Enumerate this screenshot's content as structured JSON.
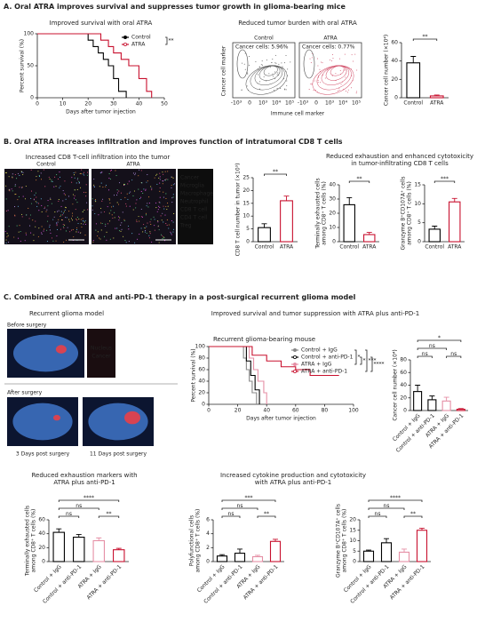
{
  "sections": [
    {
      "title": "A. Oral ATRA improves survival and suppresses tumor growth in glioma-bearing mice"
    },
    {
      "title": "B. Oral ATRA increases infiltration and improves function of intratumoral CD8 T cells"
    },
    {
      "title": "C. Combined oral ATRA and anti-PD-1 therapy in a post-surgical recurrent glioma model"
    }
  ],
  "flow": {
    "title": "Reduced tumor burden with oral ATRA",
    "y_label": "Cancer cell marker",
    "x_label": "Immune cell marker",
    "panels": [
      {
        "name": "Control",
        "gate": "Cancer cells: 5.96%"
      },
      {
        "name": "ATRA",
        "gate": "Cancer cells: 0.77%"
      }
    ],
    "ticks": [
      "-10³",
      "0",
      "10³",
      "10⁴",
      "10⁵"
    ]
  },
  "imaging": {
    "title": "Increased CD8 T-cell infiltration into the tumor",
    "panels": [
      "Control",
      "ATRA"
    ],
    "legend": [
      {
        "name": "Cancer",
        "color": "#ff5a8a"
      },
      {
        "name": "Microglia",
        "color": "#6fd0ff"
      },
      {
        "name": "Macrophage",
        "color": "#5fe08a"
      },
      {
        "name": "Neutrophil",
        "color": "#c9a3ff"
      },
      {
        "name": "CD8 T cell",
        "color": "#ffff60"
      },
      {
        "name": "CD4 T cell",
        "color": "#ff9a40"
      },
      {
        "name": "Treg",
        "color": "#ff60ff"
      }
    ]
  },
  "recurrent": {
    "title": "Recurrent glioma model",
    "before": "Before surgery",
    "after": "After surgery",
    "channels": [
      {
        "name": "Nucleus",
        "color": "#8fb8ff"
      },
      {
        "name": "Cancer",
        "color": "#ff3b3b"
      }
    ],
    "days": [
      "3 Days post surgery",
      "11 Days post surgery"
    ]
  },
  "headers": {
    "b_function": [
      "Reduced exhaustion and enhanced cytotoxicity",
      "in tumor-infiltrating CD8 T cells"
    ],
    "c_survival": [
      "Improved survival and tumor suppression with ATRA plus anti-PD-1"
    ],
    "c_exhaustion": [
      "Reduced exhaustion markers with",
      "ATRA plus anti-PD-1"
    ],
    "c_cytokine": [
      "Increased cytokine production and cytotoxicity",
      "with ATRA plus anti-PD-1"
    ]
  },
  "chart_data": [
    {
      "type": "survival",
      "title": "Improved survival with oral ATRA",
      "x_label": "Days after tumor injection",
      "y_label": [
        "Percent survival (%)"
      ],
      "xlim": [
        0,
        50
      ],
      "xticks": [
        0,
        10,
        20,
        30,
        40,
        50
      ],
      "ylim": [
        0,
        100
      ],
      "yticks": [
        0,
        50,
        100
      ],
      "legend": "upper right",
      "significance": [
        "**"
      ],
      "series": [
        {
          "name": "Control",
          "color": "#000000",
          "x": [
            0,
            20,
            22,
            24,
            26,
            28,
            30,
            32,
            35
          ],
          "values": [
            100,
            90,
            80,
            70,
            60,
            50,
            30,
            10,
            0
          ]
        },
        {
          "name": "ATRA",
          "color": "#c8102e",
          "x": [
            0,
            25,
            28,
            30,
            33,
            36,
            40,
            43,
            45
          ],
          "values": [
            100,
            90,
            80,
            70,
            60,
            50,
            30,
            10,
            0
          ]
        }
      ]
    },
    {
      "type": "bar",
      "y_label": [
        "Cancer cell number (×10⁴)"
      ],
      "categories": [
        "Control",
        "ATRA"
      ],
      "values": [
        38,
        2
      ],
      "errors": [
        7,
        1
      ],
      "colors": [
        "#000000",
        "#c8102e"
      ],
      "ylim": [
        0,
        60
      ],
      "yticks": [
        0,
        20,
        40,
        60
      ],
      "significance": [
        "**"
      ]
    },
    {
      "type": "bar",
      "y_label": [
        "CD8 T cell number in tumor (×10³)"
      ],
      "categories": [
        "Control",
        "ATRA"
      ],
      "values": [
        5.5,
        16
      ],
      "errors": [
        1.5,
        1.8
      ],
      "colors": [
        "#000000",
        "#c8102e"
      ],
      "ylim": [
        0,
        25
      ],
      "yticks": [
        0,
        5,
        10,
        15,
        20,
        25
      ],
      "significance": [
        "**"
      ]
    },
    {
      "type": "bar",
      "y_label": [
        "Terminally exhausted cells",
        "among CD8⁺ T cells (%)"
      ],
      "categories": [
        "Control",
        "ATRA"
      ],
      "values": [
        26,
        5
      ],
      "errors": [
        5,
        1.5
      ],
      "colors": [
        "#000000",
        "#c8102e"
      ],
      "ylim": [
        0,
        40
      ],
      "yticks": [
        0,
        10,
        20,
        30,
        40
      ],
      "significance": [
        "**"
      ]
    },
    {
      "type": "bar",
      "y_label": [
        "Granzyme B⁺CD107A⁺ cells",
        "among CD8⁺ T cells (%)"
      ],
      "categories": [
        "Control",
        "ATRA"
      ],
      "values": [
        3.3,
        10.5
      ],
      "errors": [
        0.8,
        0.9
      ],
      "colors": [
        "#000000",
        "#c8102e"
      ],
      "ylim": [
        0,
        15
      ],
      "yticks": [
        0,
        5,
        10,
        15
      ],
      "significance": [
        "***"
      ]
    },
    {
      "type": "survival",
      "title": "Recurrent glioma-bearing mouse",
      "x_label": "Days after tumor injection",
      "y_label": [
        "Percent survival (%)"
      ],
      "xlim": [
        0,
        100
      ],
      "xticks": [
        0,
        20,
        40,
        60,
        80,
        100
      ],
      "ylim": [
        0,
        100
      ],
      "yticks": [
        0,
        20,
        40,
        60,
        80,
        100
      ],
      "legend": "upper right",
      "significance": [
        "*",
        "*",
        "***",
        "****"
      ],
      "series": [
        {
          "name": "Control + IgG",
          "color": "#888888",
          "x": [
            0,
            24,
            26,
            28,
            30,
            33
          ],
          "values": [
            100,
            80,
            60,
            40,
            20,
            0
          ]
        },
        {
          "name": "Control + anti-PD-1",
          "color": "#000000",
          "x": [
            0,
            26,
            29,
            32,
            35
          ],
          "values": [
            100,
            75,
            50,
            25,
            0
          ]
        },
        {
          "name": "ATRA + IgG",
          "color": "#e58fa5",
          "x": [
            0,
            28,
            31,
            34,
            38,
            40
          ],
          "values": [
            100,
            80,
            60,
            40,
            20,
            0
          ]
        },
        {
          "name": "ATRA + anti-PD-1",
          "color": "#c8102e",
          "x": [
            0,
            30,
            40,
            50,
            60,
            70,
            90
          ],
          "values": [
            100,
            85,
            75,
            65,
            60,
            50,
            50
          ]
        }
      ]
    },
    {
      "type": "bar",
      "y_label": [
        "Cancer cell number (×10⁴)"
      ],
      "categories": [
        "Control + IgG",
        "Control + anti-PD-1",
        "ATRA + IgG",
        "ATRA + anti-PD-1"
      ],
      "values": [
        30,
        17,
        15,
        2
      ],
      "errors": [
        10,
        6,
        6,
        1
      ],
      "colors": [
        "#000000",
        "#000000",
        "#e58fa5",
        "#c8102e"
      ],
      "ylim": [
        0,
        80
      ],
      "yticks": [
        0,
        20,
        40,
        60,
        80
      ],
      "significance": [
        "*",
        "ns",
        "ns",
        "ns"
      ]
    },
    {
      "type": "bar",
      "y_label": [
        "Terminally exhausted cells",
        "among CD8⁺ T cells (%)"
      ],
      "categories": [
        "Control + IgG",
        "Control + anti-PD-1",
        "ATRA + IgG",
        "ATRA + anti-PD-1"
      ],
      "values": [
        42,
        35,
        30,
        17
      ],
      "errors": [
        5,
        4,
        4,
        2
      ],
      "colors": [
        "#000000",
        "#000000",
        "#e58fa5",
        "#c8102e"
      ],
      "ylim": [
        0,
        60
      ],
      "yticks": [
        0,
        20,
        40,
        60
      ],
      "significance": [
        "****",
        "ns",
        "ns",
        "**"
      ]
    },
    {
      "type": "bar",
      "y_label": [
        "Polyfunctional cells",
        "among CD8⁺ T cells (%)"
      ],
      "categories": [
        "Control + IgG",
        "Control + anti-PD-1",
        "ATRA + IgG",
        "ATRA + anti-PD-1"
      ],
      "values": [
        0.8,
        1.2,
        0.7,
        2.9
      ],
      "errors": [
        0.2,
        0.6,
        0.2,
        0.3
      ],
      "colors": [
        "#000000",
        "#000000",
        "#e58fa5",
        "#c8102e"
      ],
      "ylim": [
        0,
        6
      ],
      "yticks": [
        0,
        2,
        4,
        6
      ],
      "significance": [
        "***",
        "ns",
        "ns",
        "**"
      ]
    },
    {
      "type": "bar",
      "y_label": [
        "Granzyme B⁺CD107A⁺ cells",
        "among CD8⁺ T cells (%)"
      ],
      "categories": [
        "Control + IgG",
        "Control + anti-PD-1",
        "ATRA + IgG",
        "ATRA + anti-PD-1"
      ],
      "values": [
        5,
        9,
        4.5,
        15
      ],
      "errors": [
        0.5,
        2,
        1.5,
        1
      ],
      "colors": [
        "#000000",
        "#000000",
        "#e58fa5",
        "#c8102e"
      ],
      "ylim": [
        0,
        20
      ],
      "yticks": [
        0,
        5,
        10,
        15,
        20
      ],
      "significance": [
        "****",
        "ns",
        "ns",
        "**"
      ]
    }
  ]
}
